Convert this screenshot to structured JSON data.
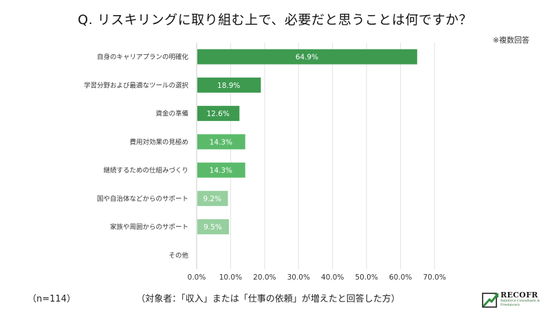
{
  "title": "Q. リスキリングに取り組む上で、必要だと思うことは何ですか？",
  "note": "※複数回答",
  "sample_size": "（n=114）",
  "target_note": "（対象者：「収入」または「仕事の依頼」が増えたと回答した方）",
  "logo": {
    "name": "RECOFR",
    "subtitle": "Reinforce Consultants & Freelancers"
  },
  "chart_data": {
    "type": "bar",
    "orientation": "horizontal",
    "title": "Q. リスキリングに取り組む上で、必要だと思うことは何ですか？",
    "categories": [
      "自身のキャリアプランの明確化",
      "学習分野および最適なツールの選択",
      "資金の準備",
      "費用対効果の見極め",
      "継続するための仕組みづくり",
      "国や自治体などからのサポート",
      "家族や周囲からのサポート",
      "その他"
    ],
    "values": [
      64.9,
      18.9,
      12.6,
      14.3,
      14.3,
      9.2,
      9.5,
      0
    ],
    "value_labels": [
      "64.9%",
      "18.9%",
      "12.6%",
      "14.3%",
      "14.3%",
      "9.2%",
      "9.5%",
      ""
    ],
    "bar_colors": [
      "#3d9a4f",
      "#3d9a4f",
      "#3d9a4f",
      "#5aba6a",
      "#5aba6a",
      "#96d09e",
      "#96d09e",
      "#96d09e"
    ],
    "xlim": [
      0,
      70
    ],
    "xticks": [
      0,
      10,
      20,
      30,
      40,
      50,
      60,
      70
    ],
    "xtick_labels": [
      "0.0%",
      "10.0%",
      "20.0%",
      "30.0%",
      "40.0%",
      "50.0%",
      "60.0%",
      "70.0%"
    ],
    "grid": true,
    "xlabel": "",
    "ylabel": ""
  }
}
